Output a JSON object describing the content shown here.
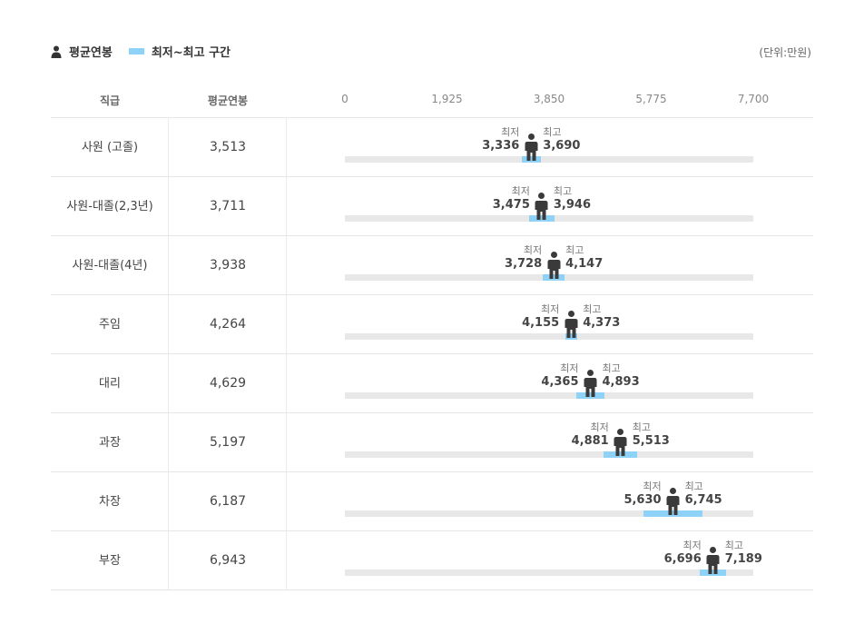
{
  "legend": {
    "avg_label": "평균연봉",
    "range_label": "최저~최고 구간",
    "unit": "(단위:만원)"
  },
  "headers": {
    "rank": "직급",
    "avg": "평균연봉"
  },
  "labels": {
    "min": "최저",
    "max": "최고"
  },
  "colors": {
    "range": "#8fd2f7",
    "track": "#e8e8e8",
    "figure": "#3a3a3a"
  },
  "chart_data": {
    "type": "range-bar",
    "axis": {
      "min": 0,
      "max": 7700,
      "ticks": [
        0,
        1925,
        3850,
        5775,
        7700
      ],
      "tick_labels": [
        "0",
        "1,925",
        "3,850",
        "5,775",
        "7,700"
      ]
    },
    "rows": [
      {
        "rank": "사원 (고졸)",
        "avg": 3513,
        "avg_label": "3,513",
        "min": 3336,
        "min_label": "3,336",
        "max": 3690,
        "max_label": "3,690"
      },
      {
        "rank": "사원-대졸(2,3년)",
        "avg": 3711,
        "avg_label": "3,711",
        "min": 3475,
        "min_label": "3,475",
        "max": 3946,
        "max_label": "3,946"
      },
      {
        "rank": "사원-대졸(4년)",
        "avg": 3938,
        "avg_label": "3,938",
        "min": 3728,
        "min_label": "3,728",
        "max": 4147,
        "max_label": "4,147"
      },
      {
        "rank": "주임",
        "avg": 4264,
        "avg_label": "4,264",
        "min": 4155,
        "min_label": "4,155",
        "max": 4373,
        "max_label": "4,373"
      },
      {
        "rank": "대리",
        "avg": 4629,
        "avg_label": "4,629",
        "min": 4365,
        "min_label": "4,365",
        "max": 4893,
        "max_label": "4,893"
      },
      {
        "rank": "과장",
        "avg": 5197,
        "avg_label": "5,197",
        "min": 4881,
        "min_label": "4,881",
        "max": 5513,
        "max_label": "5,513"
      },
      {
        "rank": "차장",
        "avg": 6187,
        "avg_label": "6,187",
        "min": 5630,
        "min_label": "5,630",
        "max": 6745,
        "max_label": "6,745"
      },
      {
        "rank": "부장",
        "avg": 6943,
        "avg_label": "6,943",
        "min": 6696,
        "min_label": "6,696",
        "max": 7189,
        "max_label": "7,189"
      }
    ]
  }
}
